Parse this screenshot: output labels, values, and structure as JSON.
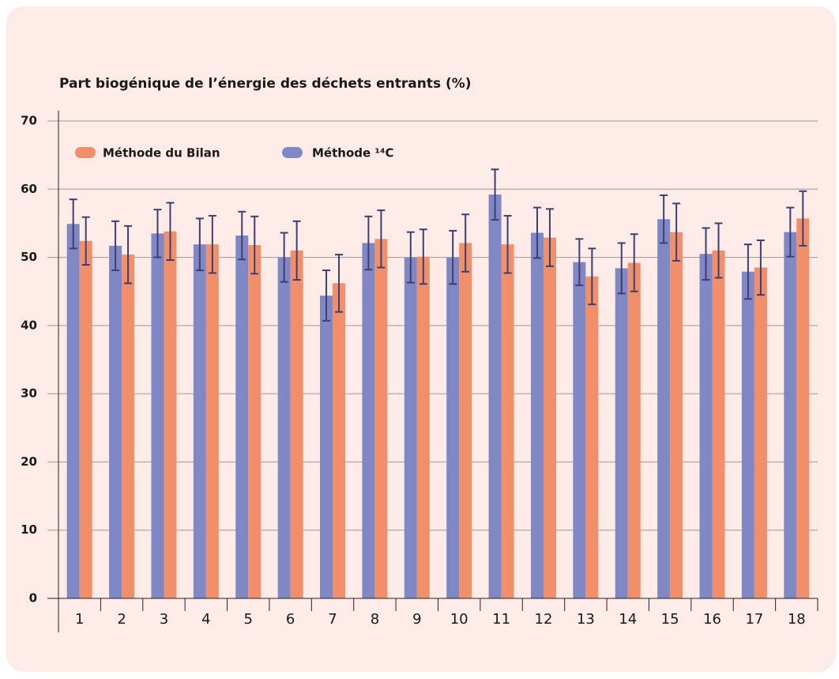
{
  "chart_data": {
    "type": "bar",
    "title": "Part biogénique de l’énergie des déchets entrants (%)",
    "categories": [
      "1",
      "2",
      "3",
      "4",
      "5",
      "6",
      "7",
      "8",
      "9",
      "10",
      "11",
      "12",
      "13",
      "14",
      "15",
      "16",
      "17",
      "18"
    ],
    "series": [
      {
        "name": "Méthode ¹⁴C",
        "color": "#7f87c4",
        "values": [
          54.9,
          51.7,
          53.5,
          51.9,
          53.2,
          50.0,
          44.4,
          52.1,
          50.0,
          50.0,
          59.2,
          53.6,
          49.3,
          48.4,
          55.6,
          50.5,
          47.9,
          53.7
        ],
        "errors": [
          3.6,
          3.6,
          3.5,
          3.8,
          3.5,
          3.6,
          3.7,
          3.9,
          3.7,
          3.9,
          3.7,
          3.7,
          3.4,
          3.7,
          3.5,
          3.8,
          4.0,
          3.6
        ]
      },
      {
        "name": "Méthode du Bilan",
        "color": "#f28f6b",
        "values": [
          52.4,
          50.4,
          53.8,
          51.9,
          51.8,
          51.0,
          46.2,
          52.7,
          50.1,
          52.1,
          51.9,
          52.9,
          47.2,
          49.2,
          53.7,
          51.0,
          48.5,
          55.7
        ],
        "errors": [
          3.5,
          4.2,
          4.2,
          4.2,
          4.2,
          4.3,
          4.2,
          4.2,
          4.0,
          4.2,
          4.2,
          4.2,
          4.1,
          4.2,
          4.2,
          4.0,
          4.0,
          4.0
        ]
      }
    ],
    "error_color": "#3d3f73",
    "ylim": [
      0,
      70
    ],
    "yticks": [
      0,
      10,
      20,
      30,
      40,
      50,
      60,
      70
    ],
    "grid": true
  }
}
